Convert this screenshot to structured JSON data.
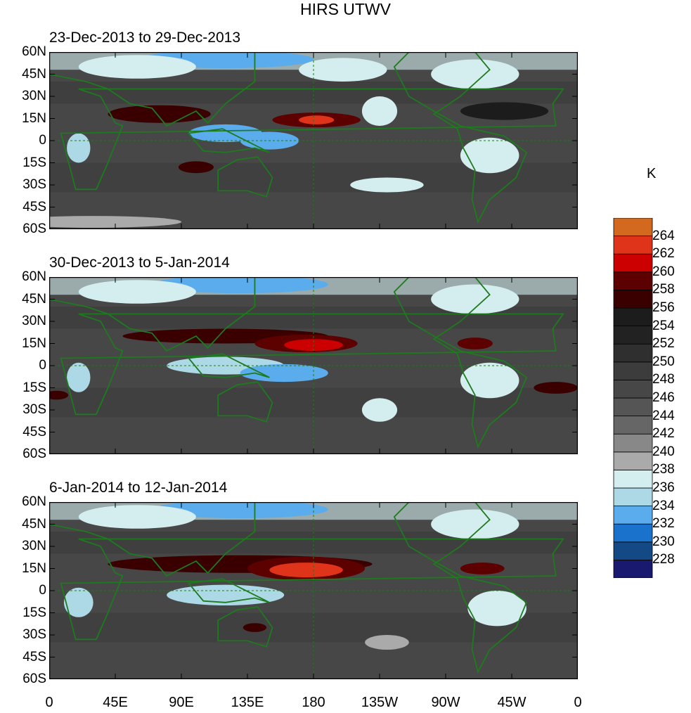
{
  "title": "HIRS UTWV",
  "unit": "K",
  "chart_data": {
    "type": "heatmap",
    "title": "HIRS UTWV",
    "xlabel": "",
    "ylabel": "",
    "xlim": [
      0,
      360
    ],
    "ylim": [
      -60,
      60
    ],
    "x_ticks": [
      "0",
      "45E",
      "90E",
      "135E",
      "180",
      "135W",
      "90W",
      "45W",
      "0"
    ],
    "y_ticks": [
      "60N",
      "45N",
      "30N",
      "15N",
      "0",
      "15S",
      "30S",
      "45S",
      "60S"
    ],
    "colorbar": {
      "label": "K",
      "levels": [
        "228",
        "230",
        "232",
        "234",
        "236",
        "238",
        "240",
        "242",
        "244",
        "246",
        "248",
        "250",
        "252",
        "254",
        "256",
        "258",
        "260",
        "262",
        "264"
      ],
      "colors": [
        "#191970",
        "#134a86",
        "#1a72cc",
        "#5aacec",
        "#add8e6",
        "#d4eef0",
        "#aaaaaa",
        "#888888",
        "#666666",
        "#555555",
        "#474747",
        "#3c3c3c",
        "#2f2f2f",
        "#222222",
        "#1c1c1c",
        "#3a0000",
        "#5c0000",
        "#cc0000",
        "#e0341a",
        "#d2691e"
      ]
    },
    "panels": [
      {
        "label": "23-Dec-2013 to 29-Dec-2013",
        "background_K": 246,
        "features": [
          {
            "lon": 120,
            "lat": 55,
            "rlon": 60,
            "rlat": 6,
            "K": 232
          },
          {
            "lon": 60,
            "lat": 50,
            "rlon": 40,
            "rlat": 8,
            "K": 237
          },
          {
            "lon": 200,
            "lat": 48,
            "rlon": 30,
            "rlat": 8,
            "K": 237
          },
          {
            "lon": 290,
            "lat": 45,
            "rlon": 30,
            "rlat": 10,
            "K": 237
          },
          {
            "lon": 75,
            "lat": 18,
            "rlon": 35,
            "rlat": 6,
            "K": 257
          },
          {
            "lon": 182,
            "lat": 14,
            "rlon": 30,
            "rlat": 5,
            "K": 258
          },
          {
            "lon": 182,
            "lat": 14,
            "rlon": 12,
            "rlat": 3,
            "K": 262
          },
          {
            "lon": 225,
            "lat": 20,
            "rlon": 12,
            "rlat": 10,
            "K": 236
          },
          {
            "lon": 120,
            "lat": 5,
            "rlon": 25,
            "rlat": 6,
            "K": 233
          },
          {
            "lon": 150,
            "lat": 0,
            "rlon": 20,
            "rlat": 6,
            "K": 233
          },
          {
            "lon": 20,
            "lat": -5,
            "rlon": 8,
            "rlat": 10,
            "K": 234
          },
          {
            "lon": 300,
            "lat": -10,
            "rlon": 20,
            "rlat": 12,
            "K": 236
          },
          {
            "lon": 100,
            "lat": -18,
            "rlon": 12,
            "rlat": 4,
            "K": 257
          },
          {
            "lon": 230,
            "lat": -30,
            "rlon": 25,
            "rlat": 5,
            "K": 237
          },
          {
            "lon": 310,
            "lat": 20,
            "rlon": 30,
            "rlat": 6,
            "K": 254
          },
          {
            "lon": 30,
            "lat": -55,
            "rlon": 60,
            "rlat": 4,
            "K": 238
          }
        ]
      },
      {
        "label": "30-Dec-2013 to 5-Jan-2014",
        "background_K": 246,
        "features": [
          {
            "lon": 130,
            "lat": 55,
            "rlon": 60,
            "rlat": 6,
            "K": 232
          },
          {
            "lon": 60,
            "lat": 50,
            "rlon": 40,
            "rlat": 8,
            "K": 237
          },
          {
            "lon": 290,
            "lat": 45,
            "rlon": 30,
            "rlat": 10,
            "K": 237
          },
          {
            "lon": 120,
            "lat": 20,
            "rlon": 70,
            "rlat": 5,
            "K": 257
          },
          {
            "lon": 175,
            "lat": 15,
            "rlon": 35,
            "rlat": 6,
            "K": 258
          },
          {
            "lon": 180,
            "lat": 14,
            "rlon": 20,
            "rlat": 4,
            "K": 260
          },
          {
            "lon": 290,
            "lat": 15,
            "rlon": 12,
            "rlat": 4,
            "K": 259
          },
          {
            "lon": 120,
            "lat": 0,
            "rlon": 40,
            "rlat": 6,
            "K": 234
          },
          {
            "lon": 160,
            "lat": -5,
            "rlon": 30,
            "rlat": 6,
            "K": 233
          },
          {
            "lon": 20,
            "lat": -8,
            "rlon": 8,
            "rlat": 10,
            "K": 234
          },
          {
            "lon": 225,
            "lat": -30,
            "rlon": 12,
            "rlat": 8,
            "K": 237
          },
          {
            "lon": 300,
            "lat": -10,
            "rlon": 20,
            "rlat": 12,
            "K": 236
          },
          {
            "lon": 345,
            "lat": -15,
            "rlon": 15,
            "rlat": 4,
            "K": 257
          },
          {
            "lon": 5,
            "lat": -20,
            "rlon": 8,
            "rlat": 3,
            "K": 257
          }
        ]
      },
      {
        "label": "6-Jan-2014 to 12-Jan-2014",
        "background_K": 246,
        "features": [
          {
            "lon": 130,
            "lat": 55,
            "rlon": 60,
            "rlat": 6,
            "K": 233
          },
          {
            "lon": 60,
            "lat": 50,
            "rlon": 40,
            "rlat": 8,
            "K": 237
          },
          {
            "lon": 290,
            "lat": 45,
            "rlon": 30,
            "rlat": 10,
            "K": 237
          },
          {
            "lon": 130,
            "lat": 18,
            "rlon": 90,
            "rlat": 6,
            "K": 256
          },
          {
            "lon": 175,
            "lat": 15,
            "rlon": 40,
            "rlat": 8,
            "K": 258
          },
          {
            "lon": 175,
            "lat": 14,
            "rlon": 25,
            "rlat": 5,
            "K": 262
          },
          {
            "lon": 295,
            "lat": 15,
            "rlon": 15,
            "rlat": 4,
            "K": 258
          },
          {
            "lon": 120,
            "lat": -3,
            "rlon": 40,
            "rlat": 7,
            "K": 234
          },
          {
            "lon": 20,
            "lat": -8,
            "rlon": 10,
            "rlat": 10,
            "K": 234
          },
          {
            "lon": 305,
            "lat": -12,
            "rlon": 20,
            "rlat": 12,
            "K": 236
          },
          {
            "lon": 140,
            "lat": -25,
            "rlon": 8,
            "rlat": 3,
            "K": 257
          },
          {
            "lon": 230,
            "lat": -35,
            "rlon": 15,
            "rlat": 5,
            "K": 238
          }
        ]
      }
    ]
  }
}
